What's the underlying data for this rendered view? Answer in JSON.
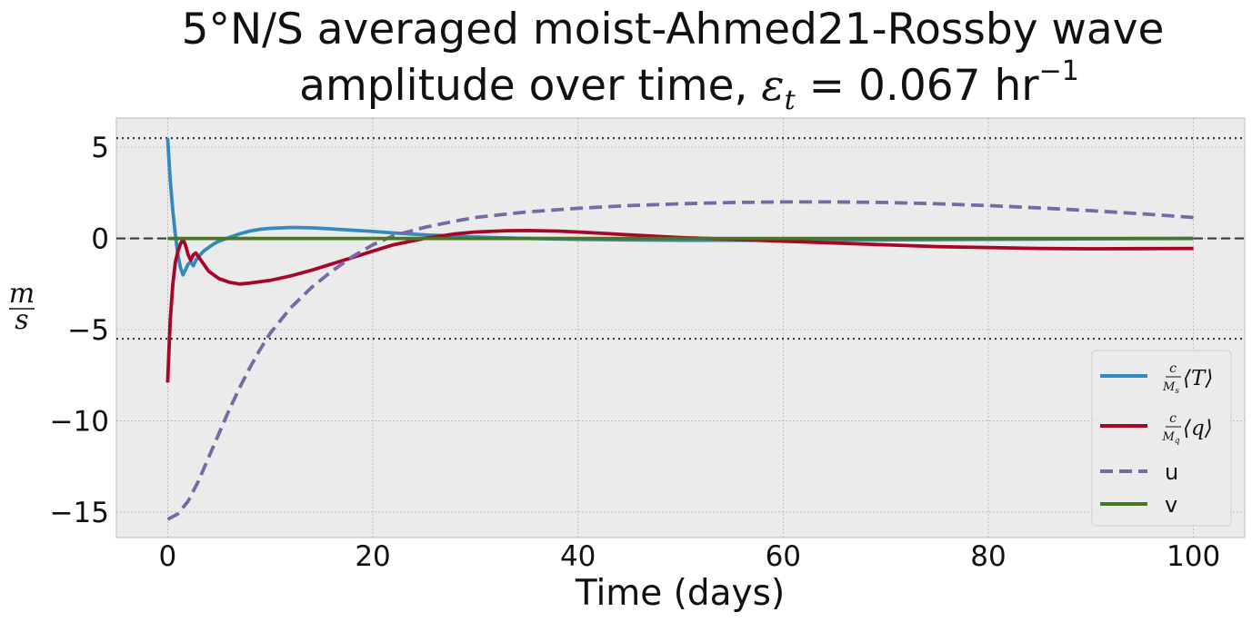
{
  "chart_data": {
    "type": "line",
    "title_line1": "5°N/S averaged moist-Ahmed21-Rossby wave",
    "title_line2_prefix": "amplitude over time, ",
    "title_symbol": "ε",
    "title_symbol_sub": "t",
    "title_line2_value": " = 0.067 hr",
    "title_line2_exp": "−1",
    "xlabel": "Time (days)",
    "ylabel_numerator": "m",
    "ylabel_denominator": "s",
    "xlim": [
      -5,
      105
    ],
    "ylim": [
      -16.4,
      6.6
    ],
    "xticks": [
      0,
      20,
      40,
      60,
      80,
      100
    ],
    "xtick_labels": [
      "0",
      "20",
      "40",
      "60",
      "80",
      "100"
    ],
    "yticks": [
      5,
      0,
      -5,
      -10,
      -15
    ],
    "ytick_labels": [
      "5",
      "0",
      "−5",
      "−10",
      "−15"
    ],
    "reference_lines": [
      {
        "name": "upper-bound-line",
        "y": 5.5,
        "style": "dotted"
      },
      {
        "name": "zero-line",
        "y": 0,
        "style": "dashed"
      },
      {
        "name": "lower-bound-line",
        "y": -5.5,
        "style": "dotted"
      }
    ],
    "grid": true,
    "legend_position": "lower-right",
    "series": [
      {
        "key": "T",
        "legend": {
          "frac_num": "c",
          "frac_den": "M",
          "frac_den_sub": "s",
          "bracket_var": "T"
        },
        "color": "#348ABD",
        "dash": "solid",
        "points": [
          [
            0,
            5.5
          ],
          [
            0.25,
            3.2
          ],
          [
            0.5,
            1.5
          ],
          [
            0.75,
            0.2
          ],
          [
            1,
            -0.9
          ],
          [
            1.25,
            -1.6
          ],
          [
            1.5,
            -2.0
          ],
          [
            1.75,
            -1.7
          ],
          [
            2,
            -1.4
          ],
          [
            2.25,
            -1.3
          ],
          [
            2.5,
            -1.5
          ],
          [
            2.75,
            -1.2
          ],
          [
            3,
            -1.0
          ],
          [
            3.5,
            -0.7
          ],
          [
            4,
            -0.5
          ],
          [
            4.5,
            -0.3
          ],
          [
            5,
            -0.15
          ],
          [
            6,
            0.05
          ],
          [
            7,
            0.25
          ],
          [
            8,
            0.4
          ],
          [
            9,
            0.5
          ],
          [
            10,
            0.55
          ],
          [
            12,
            0.6
          ],
          [
            14,
            0.58
          ],
          [
            16,
            0.52
          ],
          [
            18,
            0.45
          ],
          [
            20,
            0.38
          ],
          [
            22,
            0.3
          ],
          [
            25,
            0.2
          ],
          [
            30,
            0.08
          ],
          [
            35,
            0.0
          ],
          [
            40,
            -0.05
          ],
          [
            45,
            -0.08
          ],
          [
            50,
            -0.1
          ],
          [
            55,
            -0.1
          ],
          [
            60,
            -0.1
          ],
          [
            70,
            -0.08
          ],
          [
            80,
            -0.05
          ],
          [
            90,
            -0.02
          ],
          [
            100,
            0.0
          ]
        ]
      },
      {
        "key": "q",
        "legend": {
          "frac_num": "c",
          "frac_den": "M",
          "frac_den_sub": "q",
          "bracket_var": "q"
        },
        "color": "#A60628",
        "dash": "solid",
        "points": [
          [
            0,
            -7.9
          ],
          [
            0.25,
            -4.5
          ],
          [
            0.5,
            -2.5
          ],
          [
            0.75,
            -1.3
          ],
          [
            1,
            -0.7
          ],
          [
            1.25,
            -0.3
          ],
          [
            1.5,
            -0.05
          ],
          [
            1.75,
            -0.4
          ],
          [
            2,
            -0.9
          ],
          [
            2.25,
            -1.2
          ],
          [
            2.5,
            -0.9
          ],
          [
            2.75,
            -0.8
          ],
          [
            3,
            -1.0
          ],
          [
            3.5,
            -1.4
          ],
          [
            4,
            -1.8
          ],
          [
            5,
            -2.2
          ],
          [
            6,
            -2.4
          ],
          [
            7,
            -2.5
          ],
          [
            8,
            -2.45
          ],
          [
            10,
            -2.3
          ],
          [
            12,
            -2.05
          ],
          [
            14,
            -1.75
          ],
          [
            16,
            -1.4
          ],
          [
            18,
            -1.05
          ],
          [
            20,
            -0.7
          ],
          [
            22,
            -0.35
          ],
          [
            25,
            0.0
          ],
          [
            28,
            0.25
          ],
          [
            30,
            0.35
          ],
          [
            33,
            0.42
          ],
          [
            35,
            0.43
          ],
          [
            38,
            0.4
          ],
          [
            40,
            0.35
          ],
          [
            45,
            0.2
          ],
          [
            50,
            0.05
          ],
          [
            55,
            -0.05
          ],
          [
            60,
            -0.15
          ],
          [
            65,
            -0.25
          ],
          [
            70,
            -0.35
          ],
          [
            75,
            -0.45
          ],
          [
            80,
            -0.5
          ],
          [
            85,
            -0.55
          ],
          [
            90,
            -0.57
          ],
          [
            95,
            -0.56
          ],
          [
            100,
            -0.55
          ]
        ]
      },
      {
        "key": "u",
        "legend": {
          "text": "u"
        },
        "color": "#7A68A6",
        "dash": "dashed",
        "points": [
          [
            0,
            -15.4
          ],
          [
            1,
            -15.1
          ],
          [
            2,
            -14.4
          ],
          [
            3,
            -13.3
          ],
          [
            4,
            -12.0
          ],
          [
            5,
            -10.7
          ],
          [
            6,
            -9.4
          ],
          [
            7,
            -8.2
          ],
          [
            8,
            -7.1
          ],
          [
            9,
            -6.1
          ],
          [
            10,
            -5.2
          ],
          [
            12,
            -3.8
          ],
          [
            14,
            -2.7
          ],
          [
            16,
            -1.8
          ],
          [
            18,
            -1.0
          ],
          [
            20,
            -0.35
          ],
          [
            22,
            0.15
          ],
          [
            25,
            0.6
          ],
          [
            28,
            0.95
          ],
          [
            30,
            1.15
          ],
          [
            35,
            1.45
          ],
          [
            40,
            1.65
          ],
          [
            45,
            1.8
          ],
          [
            50,
            1.9
          ],
          [
            55,
            1.97
          ],
          [
            60,
            2.0
          ],
          [
            65,
            2.0
          ],
          [
            70,
            1.97
          ],
          [
            75,
            1.9
          ],
          [
            80,
            1.8
          ],
          [
            85,
            1.67
          ],
          [
            90,
            1.52
          ],
          [
            95,
            1.35
          ],
          [
            100,
            1.15
          ]
        ]
      },
      {
        "key": "v",
        "legend": {
          "text": "v"
        },
        "color": "#467821",
        "dash": "solid",
        "points": [
          [
            0,
            0
          ],
          [
            100,
            0
          ]
        ]
      }
    ]
  }
}
